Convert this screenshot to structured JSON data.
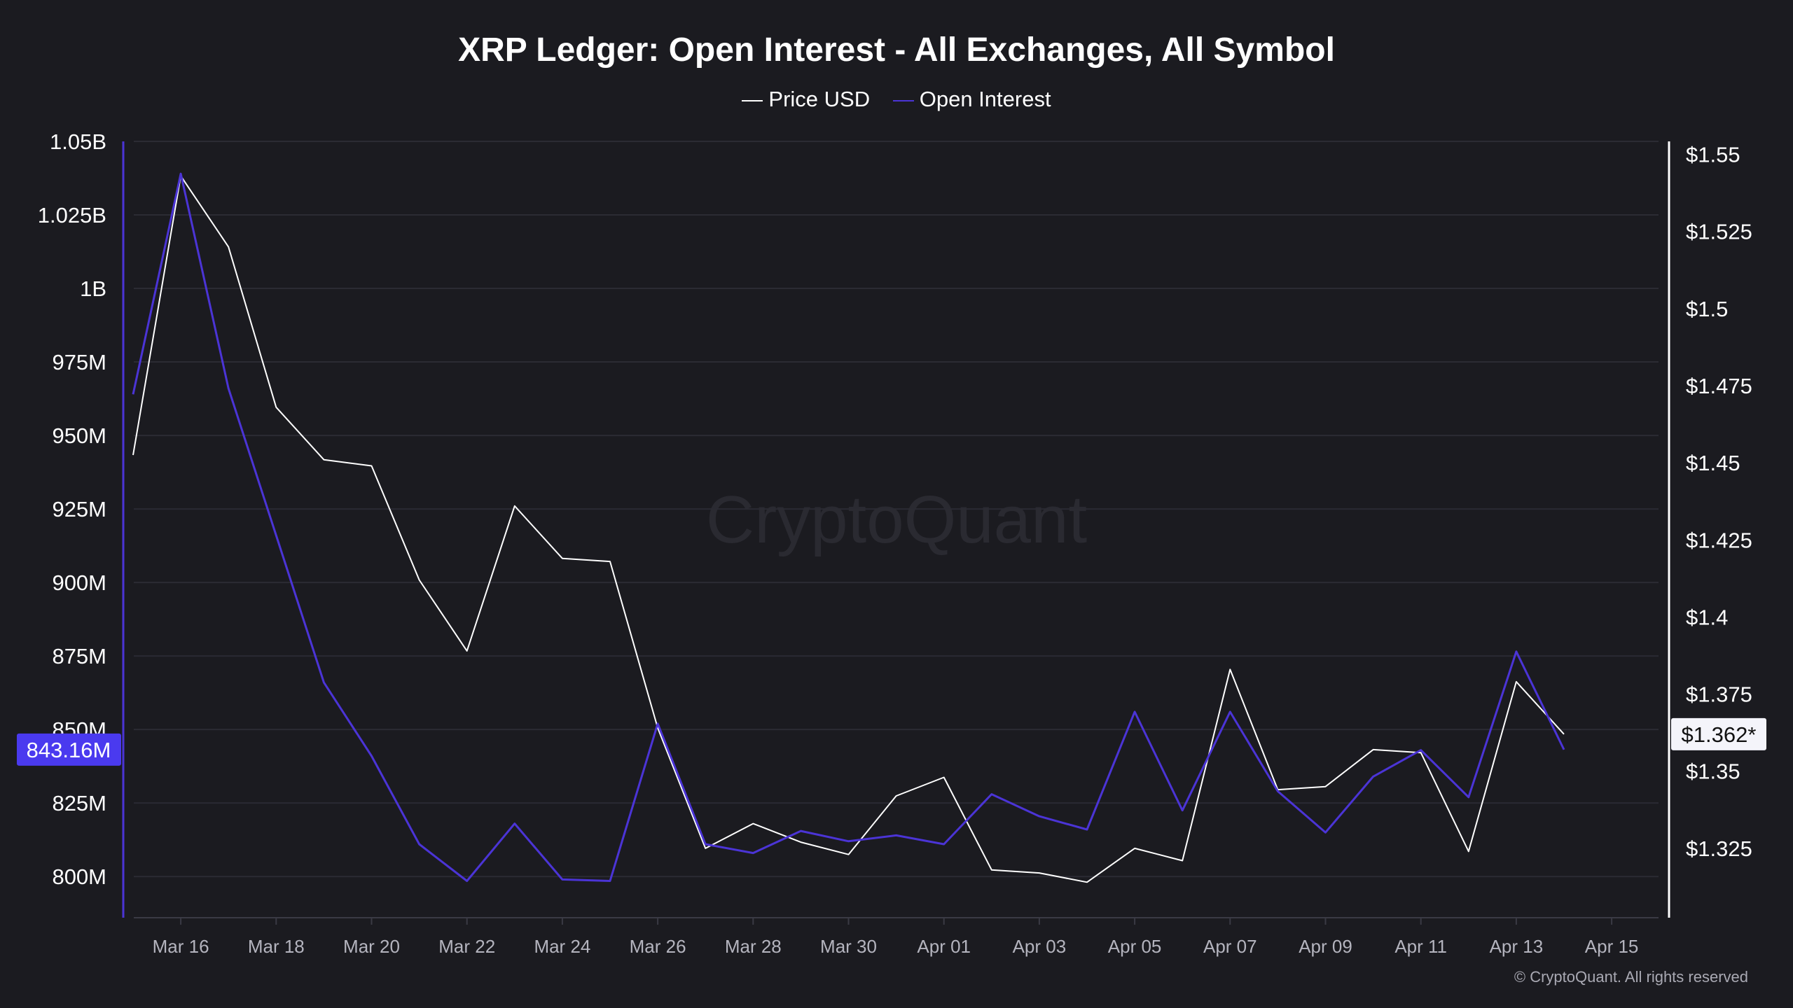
{
  "chart_data": {
    "type": "line",
    "title": "XRP Ledger: Open Interest - All Exchanges, All Symbol",
    "x": [
      "Mar 15",
      "Mar 16",
      "Mar 17",
      "Mar 18",
      "Mar 19",
      "Mar 20",
      "Mar 21",
      "Mar 22",
      "Mar 23",
      "Mar 24",
      "Mar 25",
      "Mar 26",
      "Mar 27",
      "Mar 28",
      "Mar 29",
      "Mar 30",
      "Mar 31",
      "Apr 01",
      "Apr 02",
      "Apr 03",
      "Apr 04",
      "Apr 05",
      "Apr 06",
      "Apr 07",
      "Apr 08",
      "Apr 09",
      "Apr 10",
      "Apr 11",
      "Apr 12",
      "Apr 13",
      "Apr 14"
    ],
    "x_ticks": [
      "Mar 16",
      "Mar 18",
      "Mar 20",
      "Mar 22",
      "Mar 24",
      "Mar 26",
      "Mar 28",
      "Mar 30",
      "Apr 01",
      "Apr 03",
      "Apr 05",
      "Apr 07",
      "Apr 09",
      "Apr 11",
      "Apr 13",
      "Apr 15"
    ],
    "series": [
      {
        "name": "Price USD",
        "axis": "right",
        "color": "#ffffff",
        "values": [
          1.4525,
          1.543,
          1.52,
          1.468,
          1.451,
          1.449,
          1.412,
          1.389,
          1.436,
          1.419,
          1.418,
          1.364,
          1.325,
          1.333,
          1.327,
          1.323,
          1.342,
          1.348,
          1.318,
          1.317,
          1.314,
          1.325,
          1.321,
          1.383,
          1.344,
          1.345,
          1.357,
          1.356,
          1.324,
          1.379,
          1.362
        ]
      },
      {
        "name": "Open Interest",
        "axis": "left",
        "color": "#4b34d6",
        "values": [
          964,
          1039,
          966,
          916,
          866,
          841,
          811,
          798.5,
          818,
          799,
          798.5,
          852,
          811,
          808,
          815.5,
          812,
          814,
          811,
          828,
          820.5,
          816,
          856,
          822.5,
          856,
          829,
          815,
          834,
          843,
          827,
          876.5,
          843.16
        ]
      }
    ],
    "left_axis": {
      "ylim": [
        786,
        1050
      ],
      "unit": "M",
      "ticks": [
        {
          "v": 1050,
          "label": "1.05B"
        },
        {
          "v": 1025,
          "label": "1.025B"
        },
        {
          "v": 1000,
          "label": "1B"
        },
        {
          "v": 975,
          "label": "975M"
        },
        {
          "v": 950,
          "label": "950M"
        },
        {
          "v": 925,
          "label": "925M"
        },
        {
          "v": 900,
          "label": "900M"
        },
        {
          "v": 875,
          "label": "875M"
        },
        {
          "v": 850,
          "label": "850M"
        },
        {
          "v": 825,
          "label": "825M"
        },
        {
          "v": 800,
          "label": "800M"
        }
      ]
    },
    "right_axis": {
      "ylim": [
        1.3025,
        1.5542
      ],
      "ticks": [
        {
          "v": 1.55,
          "label": "$1.55"
        },
        {
          "v": 1.525,
          "label": "$1.525"
        },
        {
          "v": 1.5,
          "label": "$1.5"
        },
        {
          "v": 1.475,
          "label": "$1.475"
        },
        {
          "v": 1.45,
          "label": "$1.45"
        },
        {
          "v": 1.425,
          "label": "$1.425"
        },
        {
          "v": 1.4,
          "label": "$1.4"
        },
        {
          "v": 1.375,
          "label": "$1.375"
        },
        {
          "v": 1.35,
          "label": "$1.35"
        },
        {
          "v": 1.325,
          "label": "$1.325"
        }
      ]
    },
    "last_value_labels": {
      "left": "843.16M",
      "right": "$1.362*"
    },
    "grid": true,
    "legend": "top-center",
    "watermark": "CryptoQuant",
    "copyright": "© CryptoQuant. All rights reserved",
    "colors": {
      "background": "#1b1b20",
      "oi_label_bg": "#4a3aef",
      "price_label_bg": "#f4f4fa"
    }
  }
}
